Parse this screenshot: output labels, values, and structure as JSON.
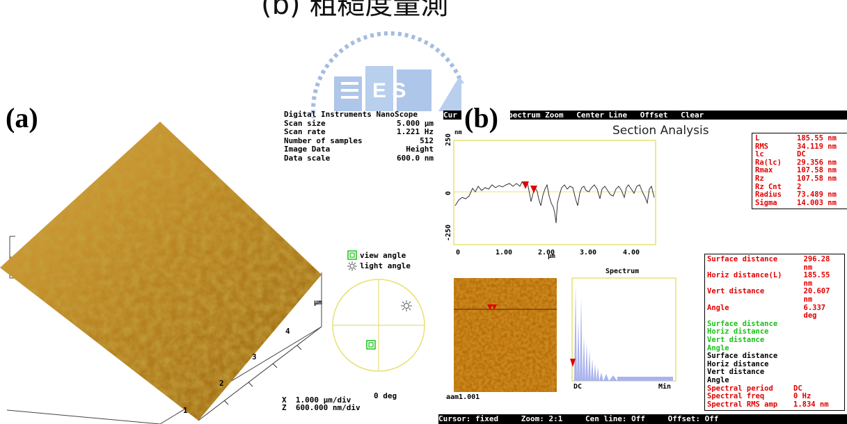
{
  "top_caption": "(b) 粗糙度量測",
  "panel_a": {
    "label": "(a)",
    "header": {
      "title": "Digital Instruments NanoScope",
      "rows": [
        {
          "key": "Scan size",
          "value": "5.000 μm"
        },
        {
          "key": "Scan rate",
          "value": "1.221 Hz"
        },
        {
          "key": "Number of samples",
          "value": "512"
        },
        {
          "key": "Image Data",
          "value": "Height"
        },
        {
          "key": "Data scale",
          "value": "600.0 nm"
        }
      ]
    },
    "axis_unit": "μm",
    "axis_ticks": [
      "1",
      "2",
      "3",
      "4"
    ],
    "legend": {
      "view": "view angle",
      "light": "light angle"
    },
    "angle_label": "0 deg",
    "scale": {
      "x": "X  1.000 μm/div",
      "z": "Z  600.000 nm/div"
    }
  },
  "panel_b": {
    "label": "(b)",
    "menu": [
      "Cursor",
      "Spectrum Zoom",
      "Center Line",
      "Offset",
      "Clear"
    ],
    "menu_prefix": "Cur",
    "title": "Section Analysis",
    "profile": {
      "y_unit": "nm",
      "y_ticks": [
        "250",
        "0",
        "-250"
      ],
      "x_ticks": [
        "0",
        "1.00",
        "2.00",
        "3.00",
        "4.00"
      ],
      "x_unit": "μm"
    },
    "roughness": [
      {
        "key": "L",
        "value": "185.55 nm"
      },
      {
        "key": "RMS",
        "value": "34.119 nm"
      },
      {
        "key": "lc",
        "value": "DC"
      },
      {
        "key": "Ra(lc)",
        "value": "29.356 nm"
      },
      {
        "key": "Rmax",
        "value": "107.58 nm"
      },
      {
        "key": "Rz",
        "value": "107.58 nm"
      },
      {
        "key": "Rz Cnt",
        "value": "2"
      },
      {
        "key": "Radius",
        "value": "73.489 nm"
      },
      {
        "key": "Sigma",
        "value": "14.003 nm"
      }
    ],
    "spectrum": {
      "title": "Spectrum",
      "left": "DC",
      "right": "Min"
    },
    "filename": "aam1.001",
    "measurements": {
      "red": [
        {
          "key": "Surface distance",
          "value": "296.28 nm"
        },
        {
          "key": "Horiz distance(L)",
          "value": "185.55 nm"
        },
        {
          "key": "Vert distance",
          "value": "20.607 nm"
        },
        {
          "key": "Angle",
          "value": "6.337 deg"
        }
      ],
      "green": [
        "Surface distance",
        "Horiz distance",
        "Vert distance",
        "Angle"
      ],
      "black": [
        "Surface distance",
        "Horiz distance",
        "Vert distance",
        "Angle"
      ],
      "spectral": [
        {
          "key": "Spectral period",
          "value": "DC"
        },
        {
          "key": "Spectral freq",
          "value": "0 Hz"
        },
        {
          "key": "Spectral RMS amp",
          "value": "1.834 nm"
        }
      ]
    },
    "status": [
      "Cursor: fixed",
      "Zoom: 2:1",
      "Cen line: Off",
      "Offset: Off"
    ]
  },
  "colors": {
    "trace": "#333333",
    "axis_box": "#e8e070",
    "accent_red": "#e00000",
    "accent_green": "#18c218",
    "surface": "#b8860b"
  }
}
